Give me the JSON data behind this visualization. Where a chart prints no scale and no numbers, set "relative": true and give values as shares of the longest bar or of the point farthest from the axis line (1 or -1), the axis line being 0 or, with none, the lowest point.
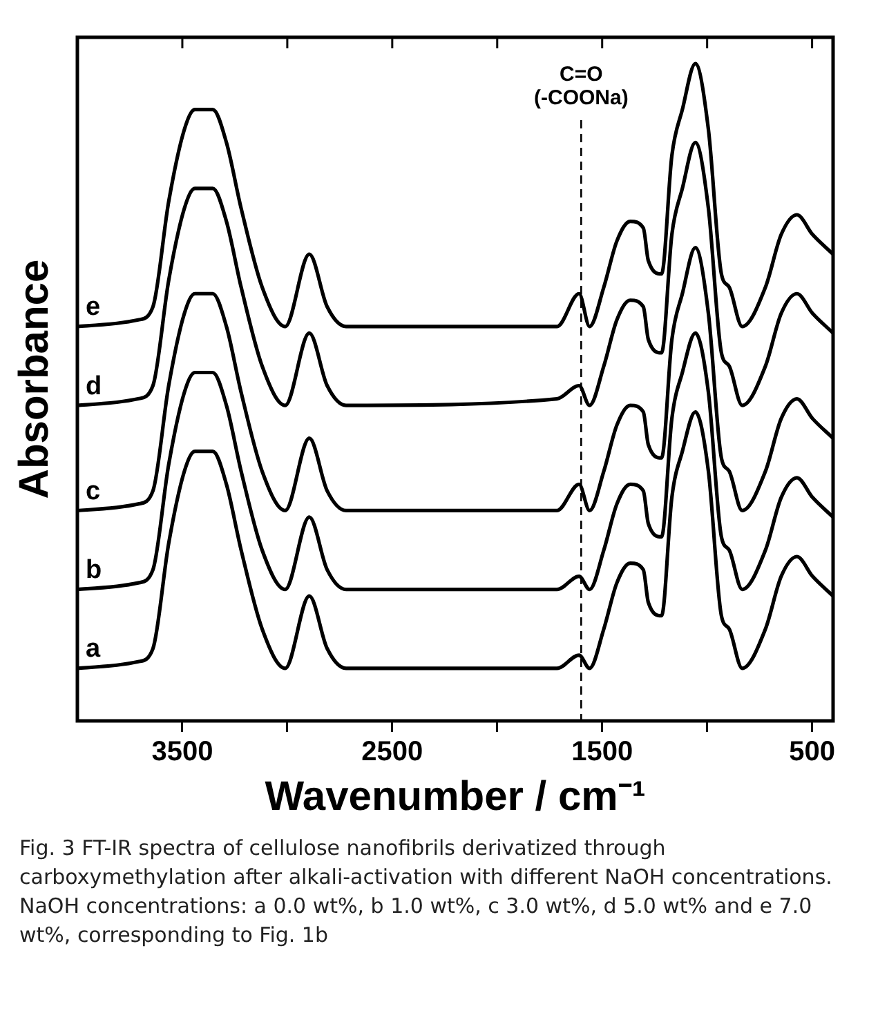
{
  "chart_data": {
    "type": "line",
    "relative": true,
    "xlabel": "Wavenumber / cm⁻¹",
    "ylabel": "Absorbance",
    "xlim": [
      4000,
      400
    ],
    "xticks": [
      3500,
      {
        "value": 3000,
        "label": null
      },
      2500,
      {
        "value": 2000,
        "label": null
      },
      1500,
      {
        "value": 1000,
        "label": null
      },
      500
    ],
    "x": [
      4000,
      3710,
      3640,
      3565,
      3490,
      3440,
      3355,
      3290,
      3220,
      3120,
      3010,
      2895,
      2810,
      2720,
      1715,
      1610,
      1560,
      1492,
      1430,
      1366,
      1304,
      1280,
      1217,
      1168,
      1118,
      1056,
      994,
      932,
      895,
      833,
      722,
      647,
      572,
      498,
      400
    ],
    "series": [
      {
        "name": "a",
        "color": "#000000",
        "values": [
          0.08,
          0.09,
          0.11,
          0.27,
          0.38,
          0.41,
          0.41,
          0.36,
          0.26,
          0.14,
          0.08,
          0.19,
          0.11,
          0.08,
          0.08,
          0.1,
          0.08,
          0.14,
          0.21,
          0.24,
          0.23,
          0.18,
          0.16,
          0.34,
          0.41,
          0.47,
          0.38,
          0.16,
          0.14,
          0.08,
          0.14,
          0.22,
          0.25,
          0.22,
          0.19
        ]
      },
      {
        "name": "b",
        "color": "#000000",
        "values": [
          0.2,
          0.21,
          0.23,
          0.39,
          0.5,
          0.53,
          0.53,
          0.48,
          0.38,
          0.26,
          0.2,
          0.31,
          0.23,
          0.2,
          0.2,
          0.22,
          0.2,
          0.26,
          0.33,
          0.36,
          0.35,
          0.3,
          0.28,
          0.46,
          0.53,
          0.59,
          0.5,
          0.28,
          0.26,
          0.2,
          0.26,
          0.34,
          0.37,
          0.34,
          0.31
        ]
      },
      {
        "name": "c",
        "color": "#000000",
        "values": [
          0.32,
          0.33,
          0.35,
          0.51,
          0.62,
          0.65,
          0.65,
          0.6,
          0.5,
          0.38,
          0.32,
          0.43,
          0.35,
          0.32,
          0.32,
          0.36,
          0.32,
          0.38,
          0.45,
          0.48,
          0.47,
          0.42,
          0.4,
          0.58,
          0.65,
          0.72,
          0.62,
          0.4,
          0.38,
          0.32,
          0.38,
          0.46,
          0.49,
          0.46,
          0.43
        ]
      },
      {
        "name": "d",
        "color": "#000000",
        "values": [
          0.48,
          0.49,
          0.51,
          0.67,
          0.78,
          0.81,
          0.81,
          0.76,
          0.66,
          0.54,
          0.48,
          0.59,
          0.51,
          0.48,
          0.49,
          0.51,
          0.48,
          0.54,
          0.61,
          0.64,
          0.63,
          0.58,
          0.56,
          0.74,
          0.81,
          0.88,
          0.78,
          0.56,
          0.54,
          0.48,
          0.54,
          0.62,
          0.65,
          0.62,
          0.59
        ]
      },
      {
        "name": "e",
        "color": "#000000",
        "values": [
          0.6,
          0.61,
          0.63,
          0.79,
          0.9,
          0.93,
          0.93,
          0.88,
          0.78,
          0.66,
          0.6,
          0.71,
          0.63,
          0.6,
          0.6,
          0.65,
          0.6,
          0.66,
          0.73,
          0.76,
          0.75,
          0.7,
          0.68,
          0.86,
          0.93,
          1.0,
          0.9,
          0.68,
          0.66,
          0.6,
          0.66,
          0.74,
          0.77,
          0.74,
          0.71
        ]
      }
    ],
    "ref_lines": [
      {
        "axis": "x",
        "value": 1600,
        "label": "C=O\n(-COONa)",
        "color": "#000000",
        "line_style": "dashed"
      }
    ],
    "marker": "none",
    "line_style": "solid",
    "annotations": [
      "Fig. 3 FT-IR spectra of cellulose nanofibrils derivatized through carboxymethylation after alkali-activation with different NaOH concentrations. NaOH concentrations: a 0.0 wt%, b 1.0 wt%, c 3.0 wt%, d 5.0 wt% and e 7.0 wt%, corresponding to Fig. 1b"
    ]
  }
}
